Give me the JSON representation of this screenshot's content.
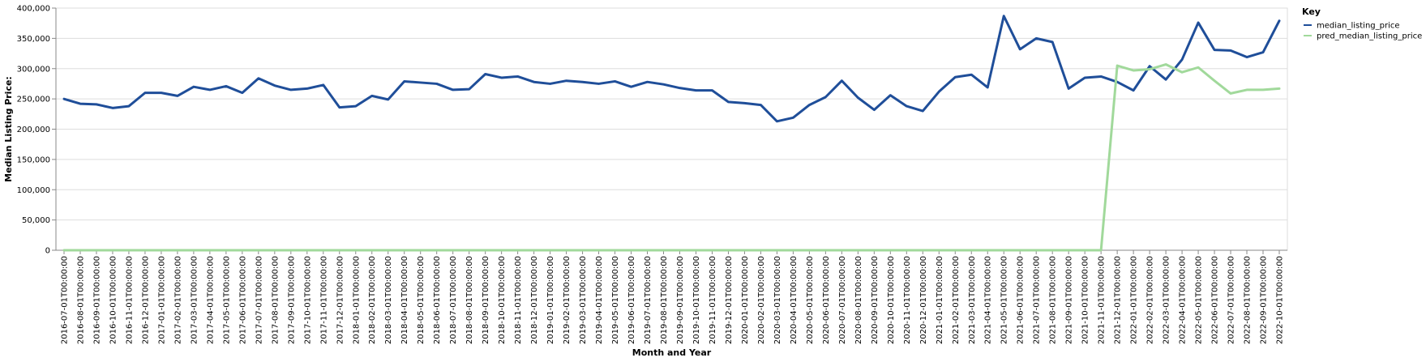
{
  "chart_data": {
    "type": "line",
    "title": "",
    "xlabel": "Month and Year",
    "ylabel": "Median Listing Price:",
    "ylim": [
      0,
      400000
    ],
    "yticks": [
      0,
      50000,
      100000,
      150000,
      200000,
      250000,
      300000,
      350000,
      400000
    ],
    "ytick_labels": [
      "0",
      "50,000",
      "100,000",
      "150,000",
      "200,000",
      "250,000",
      "300,000",
      "350,000",
      "400,000"
    ],
    "grid": true,
    "legend": {
      "title": "Key",
      "position": "top-right"
    },
    "x": [
      "2016-07-01T00:00:00",
      "2016-08-01T00:00:00",
      "2016-09-01T00:00:00",
      "2016-10-01T00:00:00",
      "2016-11-01T00:00:00",
      "2016-12-01T00:00:00",
      "2017-01-01T00:00:00",
      "2017-02-01T00:00:00",
      "2017-03-01T00:00:00",
      "2017-04-01T00:00:00",
      "2017-05-01T00:00:00",
      "2017-06-01T00:00:00",
      "2017-07-01T00:00:00",
      "2017-08-01T00:00:00",
      "2017-09-01T00:00:00",
      "2017-10-01T00:00:00",
      "2017-11-01T00:00:00",
      "2017-12-01T00:00:00",
      "2018-01-01T00:00:00",
      "2018-02-01T00:00:00",
      "2018-03-01T00:00:00",
      "2018-04-01T00:00:00",
      "2018-05-01T00:00:00",
      "2018-06-01T00:00:00",
      "2018-07-01T00:00:00",
      "2018-08-01T00:00:00",
      "2018-09-01T00:00:00",
      "2018-10-01T00:00:00",
      "2018-11-01T00:00:00",
      "2018-12-01T00:00:00",
      "2019-01-01T00:00:00",
      "2019-02-01T00:00:00",
      "2019-03-01T00:00:00",
      "2019-04-01T00:00:00",
      "2019-05-01T00:00:00",
      "2019-06-01T00:00:00",
      "2019-07-01T00:00:00",
      "2019-08-01T00:00:00",
      "2019-09-01T00:00:00",
      "2019-10-01T00:00:00",
      "2019-11-01T00:00:00",
      "2019-12-01T00:00:00",
      "2020-01-01T00:00:00",
      "2020-02-01T00:00:00",
      "2020-03-01T00:00:00",
      "2020-04-01T00:00:00",
      "2020-05-01T00:00:00",
      "2020-06-01T00:00:00",
      "2020-07-01T00:00:00",
      "2020-08-01T00:00:00",
      "2020-09-01T00:00:00",
      "2020-10-01T00:00:00",
      "2020-11-01T00:00:00",
      "2020-12-01T00:00:00",
      "2021-01-01T00:00:00",
      "2021-02-01T00:00:00",
      "2021-03-01T00:00:00",
      "2021-04-01T00:00:00",
      "2021-05-01T00:00:00",
      "2021-06-01T00:00:00",
      "2021-07-01T00:00:00",
      "2021-08-01T00:00:00",
      "2021-09-01T00:00:00",
      "2021-10-01T00:00:00",
      "2021-11-01T00:00:00",
      "2021-12-01T00:00:00",
      "2022-01-01T00:00:00",
      "2022-02-01T00:00:00",
      "2022-03-01T00:00:00",
      "2022-04-01T00:00:00",
      "2022-05-01T00:00:00",
      "2022-06-01T00:00:00",
      "2022-07-01T00:00:00",
      "2022-08-01T00:00:00",
      "2022-09-01T00:00:00",
      "2022-10-01T00:00:00"
    ],
    "series": [
      {
        "name": "median_listing_price",
        "color": "#1f4e99",
        "values": [
          250000,
          242000,
          241000,
          235000,
          238000,
          260000,
          260000,
          255000,
          270000,
          265000,
          271000,
          260000,
          284000,
          272000,
          265000,
          267000,
          273000,
          236000,
          238000,
          255000,
          249000,
          279000,
          277000,
          275000,
          265000,
          266000,
          291000,
          285000,
          287000,
          278000,
          275000,
          280000,
          278000,
          275000,
          279000,
          270000,
          278000,
          274000,
          268000,
          264000,
          264000,
          245000,
          243000,
          240000,
          213000,
          219000,
          240000,
          253000,
          280000,
          252000,
          232000,
          256000,
          238000,
          230000,
          262000,
          286000,
          290000,
          269000,
          387000,
          332000,
          350000,
          344000,
          267000,
          285000,
          287000,
          278000,
          264000,
          304000,
          282000,
          315000,
          376000,
          331000,
          330000,
          319000,
          327000,
          379000
        ]
      },
      {
        "name": "pred_median_listing_price",
        "color": "#a1d99b",
        "values": [
          0,
          0,
          0,
          0,
          0,
          0,
          0,
          0,
          0,
          0,
          0,
          0,
          0,
          0,
          0,
          0,
          0,
          0,
          0,
          0,
          0,
          0,
          0,
          0,
          0,
          0,
          0,
          0,
          0,
          0,
          0,
          0,
          0,
          0,
          0,
          0,
          0,
          0,
          0,
          0,
          0,
          0,
          0,
          0,
          0,
          0,
          0,
          0,
          0,
          0,
          0,
          0,
          0,
          0,
          0,
          0,
          0,
          0,
          0,
          0,
          0,
          0,
          0,
          0,
          0,
          305000,
          297000,
          299000,
          307000,
          294000,
          302000,
          280000,
          259000,
          265000,
          265000,
          267000
        ]
      }
    ]
  }
}
